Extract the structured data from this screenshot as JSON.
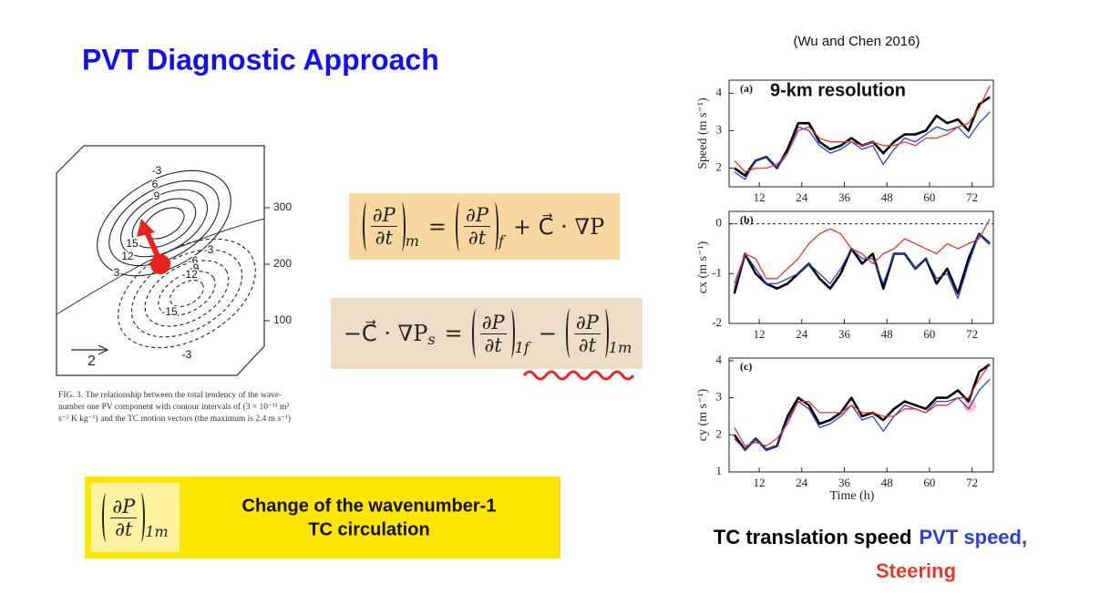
{
  "title": "PVT Diagnostic Approach",
  "figure": {
    "contour_labels": [
      "-3",
      "6",
      "9",
      "15",
      "12",
      "3",
      "-3",
      "-6",
      "-9",
      "-12",
      "-15",
      "-3"
    ],
    "axis_ticks": [
      300,
      200,
      100
    ],
    "vector_scale": 2,
    "caption": [
      "FIG. 3. The relationship between the total tendency of the wave-",
      "number one PV component with contour intervals of (3 × 10⁻¹¹ m²",
      "s⁻² K kg⁻¹) and the TC motion vectors (the maximum is 2.4 m s⁻¹)"
    ]
  },
  "formula_1": {
    "terms": [
      {
        "num": "∂P",
        "den": "∂t",
        "sub": "m"
      },
      {
        "num": "∂P",
        "den": "∂t",
        "sub": "f"
      }
    ],
    "ops": [
      "=",
      "+ C⃗ · ∇P"
    ]
  },
  "formula_2": {
    "prefix": "−C⃗ · ∇P",
    "prefix_sub": "s",
    "terms": [
      {
        "num": "∂P",
        "den": "∂t",
        "sub": "1f"
      },
      {
        "num": "∂P",
        "den": "∂t",
        "sub": "1m"
      }
    ],
    "ops": [
      "=",
      "−"
    ]
  },
  "highlight": {
    "term": {
      "num": "∂P",
      "den": "∂t",
      "sub": "1m"
    },
    "lines": [
      "Change of the wavenumber-1",
      "TC circulation"
    ]
  },
  "source": "(Wu and Chen 2016)",
  "legend": [
    {
      "text": "TC translation speed",
      "color": "#000000"
    },
    {
      "text": "PVT speed,",
      "color": "#2b3fd6"
    },
    {
      "text": "Steering",
      "color": "#e03a2a"
    }
  ],
  "chart_data": [
    {
      "type": "line",
      "panel": "(a)",
      "annotation": "9-km resolution",
      "ylabel": "Speed (m s⁻¹)",
      "x": [
        5,
        8,
        11,
        14,
        17,
        20,
        23,
        26,
        29,
        32,
        35,
        38,
        41,
        44,
        47,
        50,
        53,
        56,
        59,
        62,
        65,
        68,
        71,
        74,
        77
      ],
      "xlim": [
        3.5,
        78
      ],
      "xticks": [
        12,
        24,
        36,
        48,
        60,
        72
      ],
      "ylim": [
        1.5,
        4.35
      ],
      "yticks": [
        2,
        3,
        4
      ],
      "series": [
        {
          "color": "#000000",
          "values": [
            2.0,
            1.8,
            2.2,
            2.3,
            2.0,
            2.5,
            3.2,
            3.2,
            2.7,
            2.5,
            2.6,
            2.8,
            2.6,
            2.7,
            2.4,
            2.7,
            2.9,
            2.9,
            3.0,
            3.4,
            3.2,
            3.3,
            3.0,
            3.7,
            3.9
          ]
        },
        {
          "color": "#2b3fd6",
          "values": [
            1.9,
            1.7,
            2.2,
            2.3,
            2.0,
            2.4,
            3.1,
            3.0,
            2.6,
            2.4,
            2.5,
            2.7,
            2.5,
            2.6,
            2.1,
            2.5,
            2.8,
            2.7,
            2.9,
            3.1,
            3.0,
            3.1,
            2.8,
            3.2,
            3.5
          ]
        },
        {
          "color": "#e03a2a",
          "values": [
            2.2,
            1.9,
            2.0,
            2.0,
            2.1,
            2.4,
            3.0,
            3.1,
            2.8,
            2.7,
            2.7,
            2.7,
            2.6,
            2.7,
            2.6,
            2.6,
            2.7,
            2.6,
            2.8,
            2.8,
            2.9,
            3.1,
            3.2,
            3.6,
            4.2
          ]
        }
      ]
    },
    {
      "type": "line",
      "panel": "(b)",
      "ylabel": "cx (m s⁻¹)",
      "hline": 0,
      "x": [
        5,
        8,
        11,
        14,
        17,
        20,
        23,
        26,
        29,
        32,
        35,
        38,
        41,
        44,
        47,
        50,
        53,
        56,
        59,
        62,
        65,
        68,
        71,
        74,
        77
      ],
      "xlim": [
        3.5,
        78
      ],
      "xticks": [
        12,
        24,
        36,
        48,
        60,
        72
      ],
      "ylim": [
        -2,
        0.25
      ],
      "yticks": [
        -2,
        -1,
        0
      ],
      "series": [
        {
          "color": "#000000",
          "values": [
            -1.4,
            -0.6,
            -1.0,
            -1.2,
            -1.3,
            -1.2,
            -1.0,
            -0.8,
            -1.1,
            -1.3,
            -1.0,
            -0.5,
            -0.8,
            -0.6,
            -1.3,
            -0.6,
            -0.6,
            -0.9,
            -0.7,
            -1.2,
            -0.9,
            -1.4,
            -0.7,
            -0.2,
            -0.4
          ]
        },
        {
          "color": "#2b3fd6",
          "values": [
            -1.3,
            -0.6,
            -0.9,
            -1.2,
            -1.2,
            -1.1,
            -1.0,
            -0.8,
            -1.0,
            -1.2,
            -0.9,
            -0.5,
            -0.7,
            -0.7,
            -1.2,
            -0.6,
            -0.6,
            -0.9,
            -0.7,
            -1.1,
            -1.0,
            -1.5,
            -0.8,
            -0.2,
            -0.4
          ]
        },
        {
          "color": "#e03a2a",
          "values": [
            -1.2,
            -0.6,
            -0.7,
            -1.1,
            -1.1,
            -0.9,
            -0.7,
            -0.4,
            -0.2,
            -0.1,
            -0.2,
            -0.5,
            -0.6,
            -0.8,
            -0.6,
            -0.5,
            -0.3,
            -0.4,
            -0.5,
            -0.6,
            -0.4,
            -0.5,
            -0.4,
            -0.3,
            0.1
          ]
        }
      ]
    },
    {
      "type": "line",
      "panel": "(c)",
      "ylabel": "cy (m s⁻¹)",
      "xlabel": "Time (h)",
      "x": [
        5,
        8,
        11,
        14,
        17,
        20,
        23,
        26,
        29,
        32,
        35,
        38,
        41,
        44,
        47,
        50,
        53,
        56,
        59,
        62,
        65,
        68,
        71,
        74,
        77
      ],
      "xlim": [
        3.5,
        78
      ],
      "xticks": [
        12,
        24,
        36,
        48,
        60,
        72
      ],
      "ylim": [
        1,
        4.07
      ],
      "yticks": [
        1,
        2,
        3,
        4
      ],
      "series": [
        {
          "color": "#000000",
          "values": [
            2.0,
            1.6,
            1.9,
            1.6,
            1.7,
            2.5,
            3.0,
            2.8,
            2.3,
            2.4,
            2.6,
            3.0,
            2.5,
            2.6,
            2.4,
            2.7,
            2.9,
            2.8,
            2.7,
            3.0,
            3.0,
            3.2,
            2.9,
            3.7,
            3.9
          ]
        },
        {
          "color": "#2b3fd6",
          "values": [
            1.9,
            1.6,
            1.9,
            1.6,
            1.7,
            2.4,
            2.9,
            2.7,
            2.2,
            2.3,
            2.5,
            2.8,
            2.4,
            2.5,
            2.1,
            2.5,
            2.8,
            2.7,
            2.6,
            2.9,
            2.9,
            3.0,
            2.7,
            3.2,
            3.5
          ]
        },
        {
          "color": "#e03a2a",
          "values": [
            2.2,
            1.7,
            1.8,
            1.7,
            1.9,
            2.3,
            2.9,
            2.9,
            2.6,
            2.6,
            2.6,
            2.8,
            2.6,
            2.6,
            2.5,
            2.5,
            2.7,
            2.7,
            2.6,
            2.8,
            2.8,
            3.0,
            3.0,
            3.5,
            3.9
          ]
        }
      ]
    }
  ]
}
